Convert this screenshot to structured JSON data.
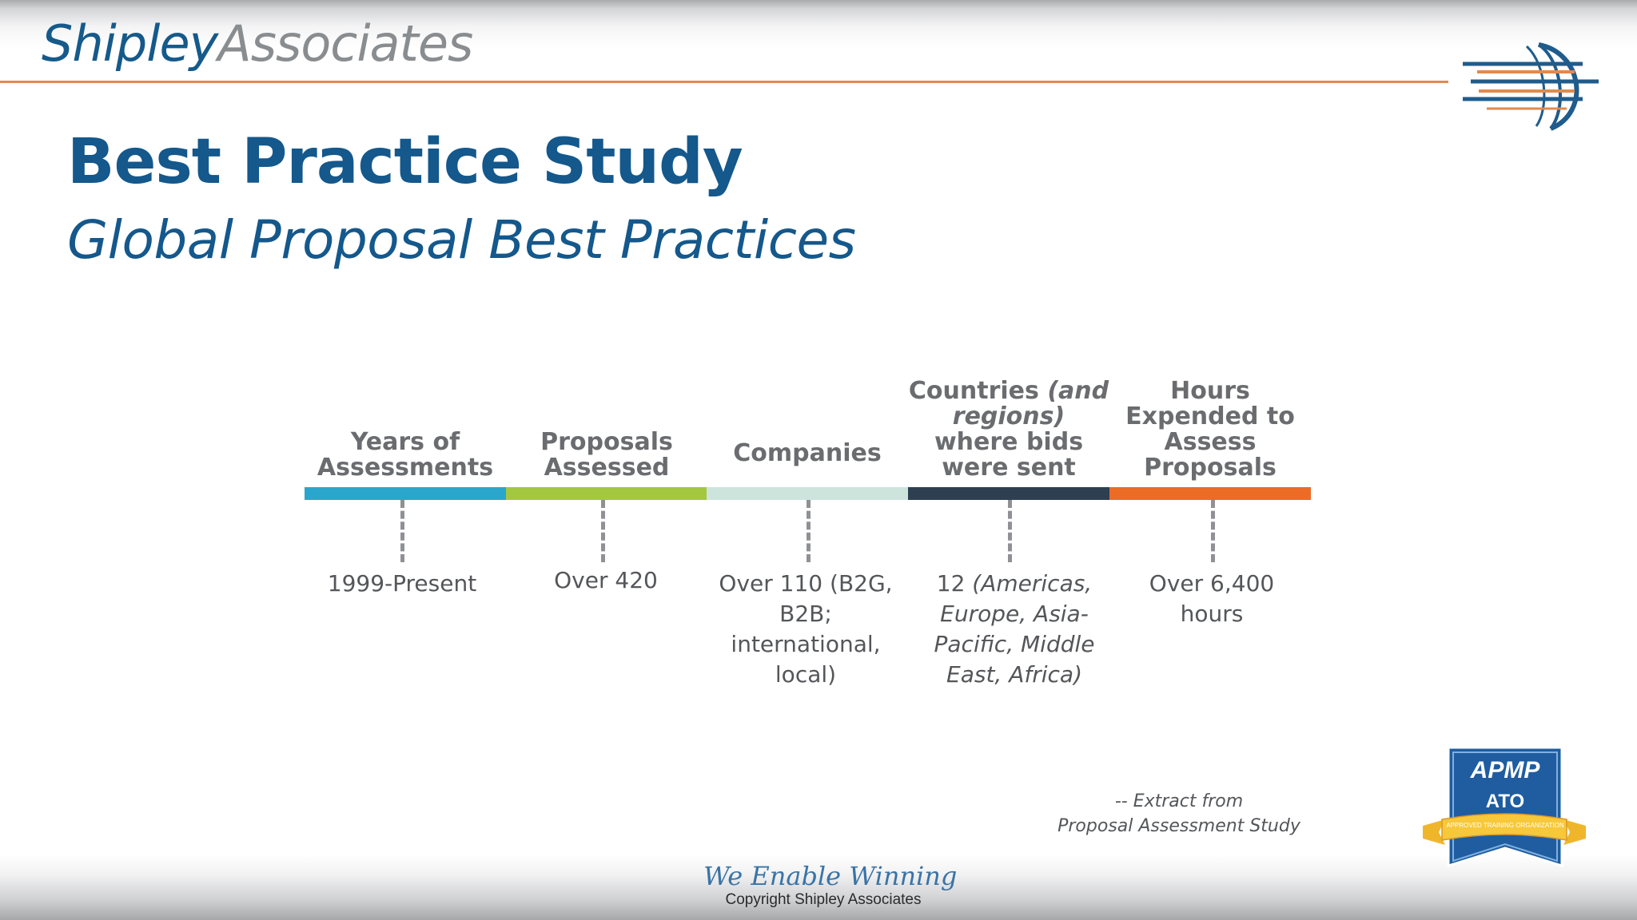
{
  "header": {
    "logo_primary": "Shipley",
    "logo_secondary": "Associates"
  },
  "slide": {
    "title": "Best Practice Study",
    "subtitle": "Global Proposal Best Practices"
  },
  "timeline": {
    "colors": [
      "#2aa6cc",
      "#a3c73e",
      "#cde4dd",
      "#2e3f52",
      "#ec6b25"
    ],
    "columns": [
      {
        "header": "Years of Assessments",
        "value": "1999-Present"
      },
      {
        "header": "Proposals Assessed",
        "value": "Over 420"
      },
      {
        "header": "Companies",
        "value": "Over 110 (B2G, B2B; international, local)"
      },
      {
        "header_parts": [
          "Countries ",
          "(and regions)",
          " where bids were sent"
        ],
        "value_parts": [
          "12 ",
          "(Americas, Europe, Asia-Pacific, Middle East, Africa)"
        ]
      },
      {
        "header": "Hours Expended to Assess Proposals",
        "value": "Over 6,400 hours"
      }
    ]
  },
  "source_note": {
    "line1": "-- Extract from",
    "line2": "Proposal Assessment Study"
  },
  "footer": {
    "tagline": "We Enable Winning",
    "copyright": "Copyright Shipley Associates"
  },
  "badge": {
    "title": "APMP",
    "subtitle": "ATO",
    "ribbon": "APPROVED TRAINING ORGANIZATION"
  },
  "icons": {
    "globe": "globe-logo-icon",
    "badge": "apmp-ato-badge-icon"
  }
}
